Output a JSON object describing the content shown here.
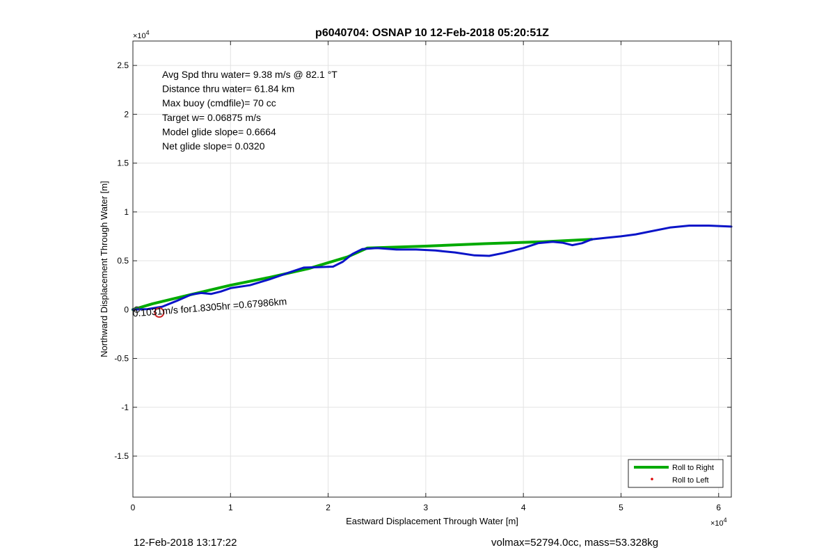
{
  "chart_data": {
    "type": "line",
    "title": "p6040704: OSNAP 10 12-Feb-2018 05:20:51Z",
    "xlabel": "Eastward Displacement Through Water [m]",
    "ylabel": "Northward Displacement Through Water [m]",
    "x_exponent_label": "×10",
    "x_exponent_power": "4",
    "y_exponent_label": "×10",
    "y_exponent_power": "4",
    "xlim": [
      0,
      61300
    ],
    "ylim": [
      -19200,
      27500
    ],
    "grid": true,
    "x_ticks": [
      {
        "value": 0,
        "label": "0"
      },
      {
        "value": 10000,
        "label": "1"
      },
      {
        "value": 20000,
        "label": "2"
      },
      {
        "value": 30000,
        "label": "3"
      },
      {
        "value": 40000,
        "label": "4"
      },
      {
        "value": 50000,
        "label": "5"
      },
      {
        "value": 60000,
        "label": "6"
      }
    ],
    "y_ticks": [
      {
        "value": -15000,
        "label": "-1.5"
      },
      {
        "value": -10000,
        "label": "-1"
      },
      {
        "value": -5000,
        "label": "-0.5"
      },
      {
        "value": 0,
        "label": "0"
      },
      {
        "value": 5000,
        "label": "0.5"
      },
      {
        "value": 10000,
        "label": "1"
      },
      {
        "value": 15000,
        "label": "1.5"
      },
      {
        "value": 20000,
        "label": "2"
      },
      {
        "value": 25000,
        "label": "2.5"
      }
    ],
    "stats_lines": [
      "Avg Spd thru water=  9.38 m/s @  82.1 °T",
      "Distance thru water= 61.84 km",
      "Max buoy (cmdfile)= 70 cc",
      "Target w= 0.06875 m/s",
      "Model glide slope= 0.6664",
      "Net glide slope= 0.0320"
    ],
    "annotation": {
      "text": "0.1031m/s for1.8305hr =0.67986km",
      "x": 0,
      "y": -300,
      "rotation_deg": -4.5
    },
    "series": [
      {
        "name": "Roll to Right",
        "color": "#00aa00",
        "width": 4,
        "x": [
          0,
          2000,
          6000,
          10000,
          14000,
          18000,
          22000,
          24000,
          30000,
          36000,
          42000,
          47000
        ],
        "y": [
          0,
          600,
          1550,
          2500,
          3300,
          4200,
          5400,
          6300,
          6500,
          6750,
          6950,
          7200
        ]
      },
      {
        "name": "track",
        "color": "#0a14c8",
        "width": 3,
        "x": [
          0,
          1500,
          3000,
          4500,
          6000,
          7000,
          8000,
          9000,
          10000,
          12000,
          14000,
          16000,
          17500,
          19000,
          20500,
          21500,
          22500,
          23500,
          25000,
          27000,
          29000,
          31000,
          33000,
          35000,
          36500,
          38000,
          40000,
          41500,
          43000,
          44000,
          45000,
          46000,
          47000,
          48500,
          50000,
          51500,
          53000,
          55000,
          57000,
          59000,
          61300
        ],
        "y": [
          0,
          50,
          300,
          900,
          1550,
          1700,
          1600,
          1850,
          2200,
          2500,
          3100,
          3800,
          4300,
          4350,
          4400,
          4900,
          5700,
          6200,
          6300,
          6150,
          6150,
          6050,
          5850,
          5550,
          5500,
          5800,
          6300,
          6800,
          6950,
          6850,
          6600,
          6800,
          7200,
          7350,
          7500,
          7700,
          8000,
          8400,
          8600,
          8600,
          8500
        ]
      }
    ],
    "markers": [
      {
        "name": "start-marker",
        "x": 2700,
        "y": -300,
        "color": "#cc2222"
      },
      {
        "name": "origin-marker",
        "x": 400,
        "y": 0,
        "color": "#444444"
      }
    ],
    "legend": {
      "position": "bottom-right",
      "entries": [
        {
          "label": "Roll to Right",
          "color": "#00aa00",
          "kind": "line"
        },
        {
          "label": "Roll to Left",
          "color": "#dd0000",
          "kind": "dot"
        }
      ]
    }
  },
  "footer": {
    "timestamp": "12-Feb-2018 13:17:22",
    "summary": "volmax=52794.0cc, mass=53.328kg"
  }
}
